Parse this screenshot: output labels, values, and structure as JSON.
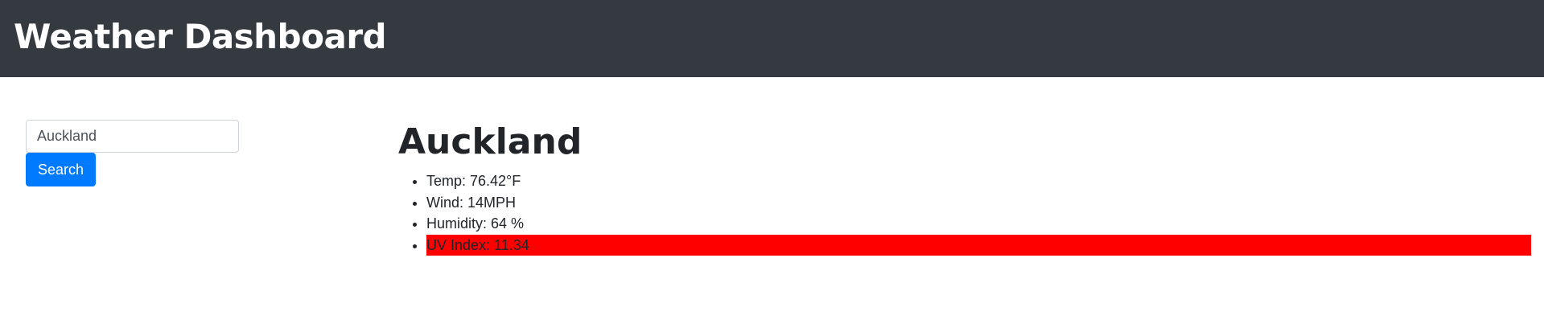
{
  "header": {
    "title": "Weather Dashboard"
  },
  "search": {
    "value": "Auckland",
    "button_label": "Search"
  },
  "weather": {
    "city": "Auckland",
    "temp": "Temp: 76.42°F",
    "wind": "Wind: 14MPH",
    "humidity": "Humidity: 64 %",
    "uv_index": "UV Index: 11.34"
  },
  "colors": {
    "header_bg": "#343a40",
    "button_bg": "#007bff",
    "uv_severity_bg": "#ff0000"
  }
}
